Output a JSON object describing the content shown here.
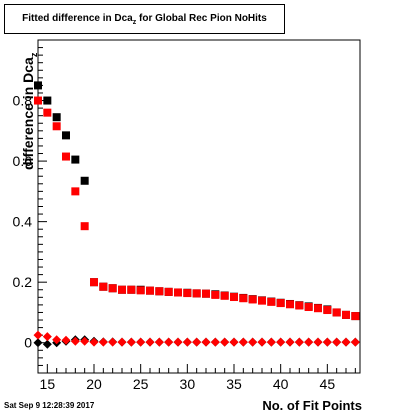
{
  "chart_data": {
    "type": "scatter",
    "title_main": "Fitted difference in Dca",
    "title_sub": "z",
    "title_rest": " for Global Rec Pion NoHits",
    "xlabel": "No. of Fit Points",
    "ylabel_main": "difference in Dca",
    "ylabel_sub": "z",
    "xlim": [
      14,
      48.5
    ],
    "ylim": [
      -0.1,
      1.0
    ],
    "xticks": [
      15,
      20,
      25,
      30,
      35,
      40,
      45
    ],
    "yticks": [
      0,
      0.2,
      0.4,
      0.6,
      0.8
    ],
    "ytick_labels": [
      "0",
      "0.2",
      "0.4",
      "0.6",
      "0.8"
    ],
    "grid": false,
    "series": [
      {
        "color": "#000000",
        "marker": "square",
        "x": [
          14,
          15,
          16,
          17,
          18,
          19,
          20,
          21,
          22,
          23,
          24,
          25,
          26,
          27,
          28,
          29,
          30,
          31,
          32,
          33,
          34,
          35,
          36,
          37,
          38,
          39,
          40,
          41,
          42,
          43,
          44,
          45,
          46,
          47,
          48
        ],
        "y": [
          0.85,
          0.8,
          0.745,
          0.685,
          0.605,
          0.535,
          0.2,
          0.185,
          0.18,
          0.175,
          0.175,
          0.175,
          0.172,
          0.17,
          0.168,
          0.166,
          0.165,
          0.163,
          0.162,
          0.16,
          0.156,
          0.152,
          0.148,
          0.144,
          0.14,
          0.136,
          0.132,
          0.128,
          0.124,
          0.12,
          0.115,
          0.11,
          0.1,
          0.092,
          0.088
        ]
      },
      {
        "color": "#ff0000",
        "marker": "square",
        "x": [
          14,
          15,
          16,
          17,
          18,
          19,
          20,
          21,
          22,
          23,
          24,
          25,
          26,
          27,
          28,
          29,
          30,
          31,
          32,
          33,
          34,
          35,
          36,
          37,
          38,
          39,
          40,
          41,
          42,
          43,
          44,
          45,
          46,
          47,
          48
        ],
        "y": [
          0.8,
          0.76,
          0.715,
          0.615,
          0.5,
          0.385,
          0.2,
          0.185,
          0.18,
          0.175,
          0.175,
          0.173,
          0.172,
          0.17,
          0.168,
          0.166,
          0.164,
          0.163,
          0.162,
          0.158,
          0.155,
          0.151,
          0.147,
          0.143,
          0.139,
          0.135,
          0.131,
          0.127,
          0.123,
          0.118,
          0.114,
          0.108,
          0.1,
          0.092,
          0.088
        ]
      },
      {
        "color": "#000000",
        "marker": "diamond",
        "x": [
          14,
          15,
          16,
          17,
          18,
          19,
          20,
          21,
          22,
          23,
          24,
          25,
          26,
          27,
          28,
          29,
          30,
          31,
          32,
          33,
          34,
          35,
          36,
          37,
          38,
          39,
          40,
          41,
          42,
          43,
          44,
          45,
          46,
          47,
          48
        ],
        "y": [
          0.0,
          -0.005,
          0.0,
          0.005,
          0.01,
          0.01,
          0.005,
          0.003,
          0.003,
          0.002,
          0.002,
          0.002,
          0.002,
          0.002,
          0.002,
          0.002,
          0.002,
          0.002,
          0.002,
          0.002,
          0.002,
          0.002,
          0.002,
          0.002,
          0.002,
          0.002,
          0.002,
          0.002,
          0.002,
          0.002,
          0.002,
          0.002,
          0.002,
          0.002,
          0.002
        ]
      },
      {
        "color": "#ff0000",
        "marker": "diamond",
        "x": [
          14,
          15,
          16,
          17,
          18,
          19,
          20,
          21,
          22,
          23,
          24,
          25,
          26,
          27,
          28,
          29,
          30,
          31,
          32,
          33,
          34,
          35,
          36,
          37,
          38,
          39,
          40,
          41,
          42,
          43,
          44,
          45,
          46,
          47,
          48
        ],
        "y": [
          0.025,
          0.02,
          0.01,
          0.008,
          0.005,
          0.005,
          0.002,
          0.002,
          0.002,
          0.002,
          0.002,
          0.002,
          0.002,
          0.002,
          0.002,
          0.002,
          0.002,
          0.002,
          0.002,
          0.002,
          0.002,
          0.002,
          0.002,
          0.002,
          0.002,
          0.002,
          0.002,
          0.002,
          0.002,
          0.002,
          0.002,
          0.002,
          0.002,
          0.002,
          0.002
        ]
      }
    ]
  },
  "timestamp": "Sat Sep  9 12:28:39 2017"
}
